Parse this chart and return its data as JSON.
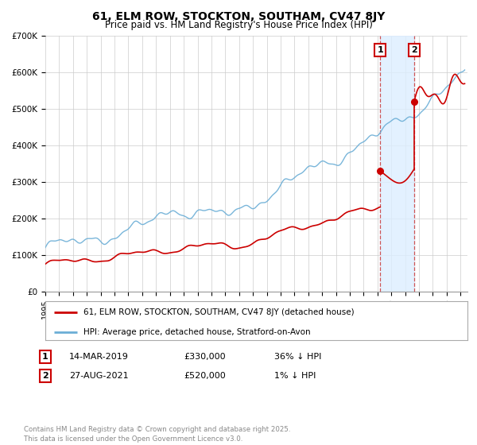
{
  "title": "61, ELM ROW, STOCKTON, SOUTHAM, CV47 8JY",
  "subtitle": "Price paid vs. HM Land Registry's House Price Index (HPI)",
  "ylim": [
    0,
    700000
  ],
  "yticks": [
    0,
    100000,
    200000,
    300000,
    400000,
    500000,
    600000,
    700000
  ],
  "ytick_labels": [
    "£0",
    "£100K",
    "£200K",
    "£300K",
    "£400K",
    "£500K",
    "£600K",
    "£700K"
  ],
  "xlim_start": 1995.0,
  "xlim_end": 2025.5,
  "hpi_color": "#6baed6",
  "price_color": "#cc0000",
  "shade_color": "#ddeeff",
  "event1_date": 2019.19,
  "event2_date": 2021.65,
  "event1_price": 330000,
  "event2_price": 520000,
  "legend_label1": "61, ELM ROW, STOCKTON, SOUTHAM, CV47 8JY (detached house)",
  "legend_label2": "HPI: Average price, detached house, Stratford-on-Avon",
  "table_row1": [
    "1",
    "14-MAR-2019",
    "£330,000",
    "36% ↓ HPI"
  ],
  "table_row2": [
    "2",
    "27-AUG-2021",
    "£520,000",
    "1% ↓ HPI"
  ],
  "footer": "Contains HM Land Registry data © Crown copyright and database right 2025.\nThis data is licensed under the Open Government Licence v3.0.",
  "background_color": "#ffffff",
  "grid_color": "#cccccc"
}
